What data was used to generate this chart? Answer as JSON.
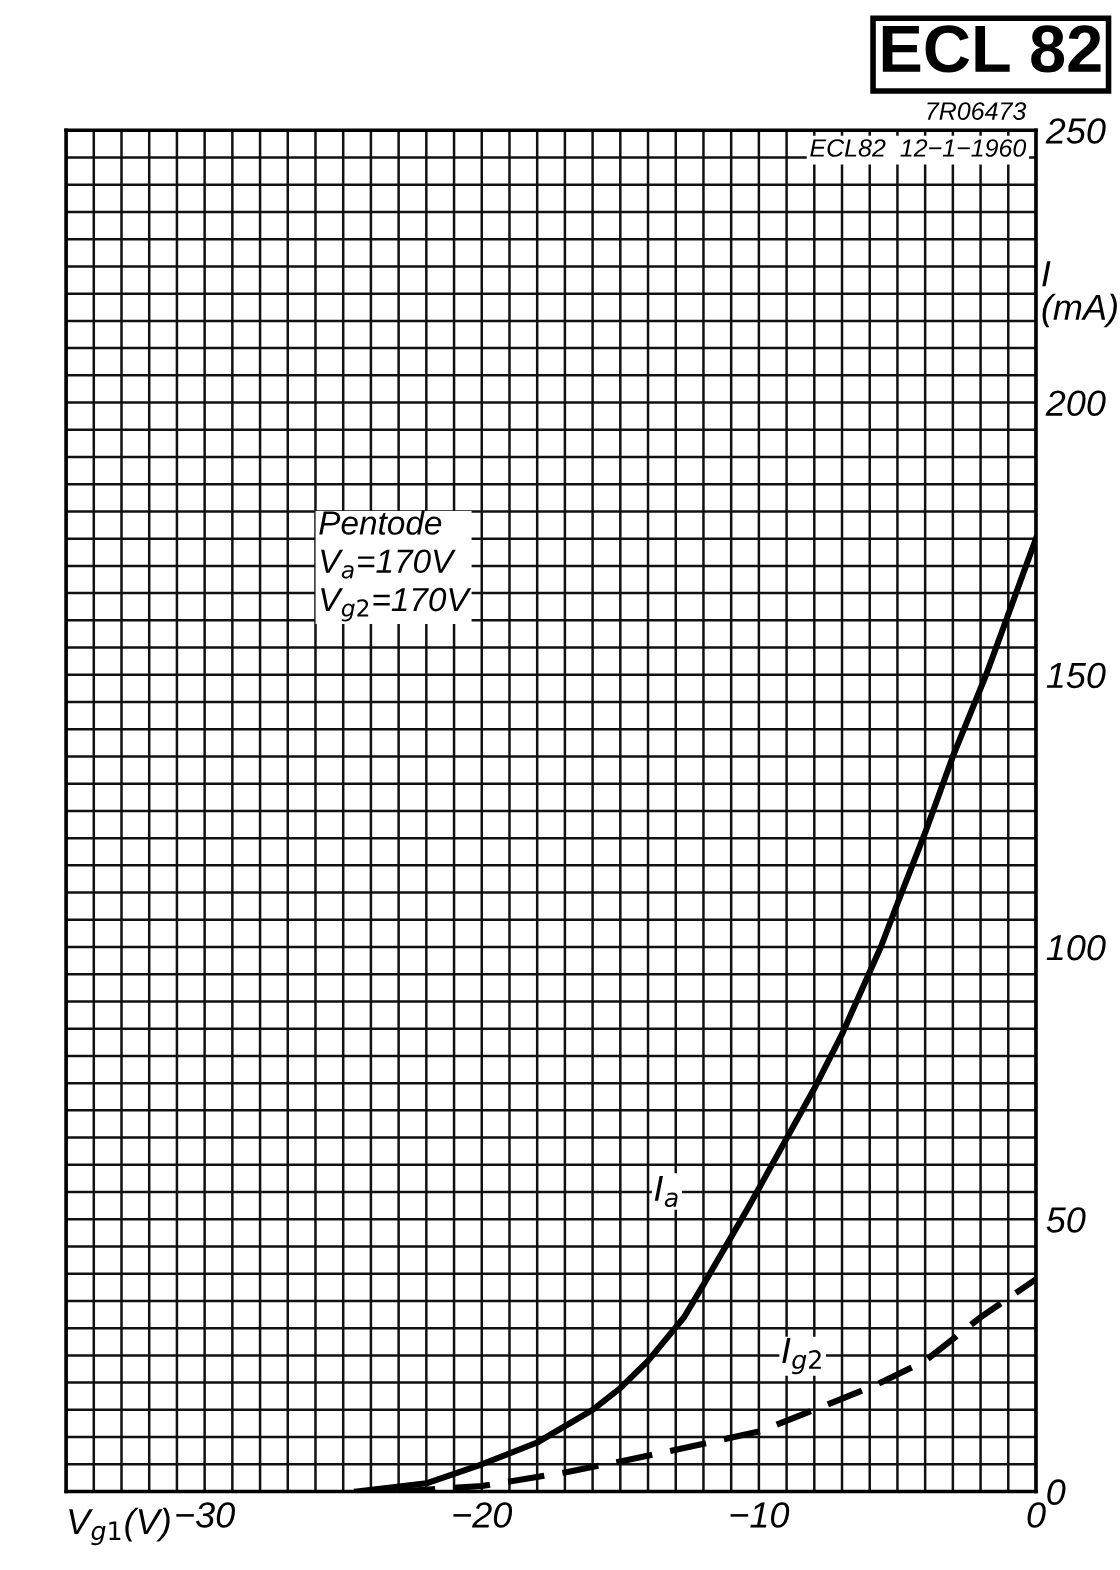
{
  "chart_data": {
    "type": "line",
    "title": "ECL 82",
    "xlabel": "V$_{g1}$(V)",
    "ylabel": "I\n(mA)",
    "annotations": [
      "7R06473",
      "ECL82  12−1−1960",
      "Pentode\nV$_{a}$=170V\nV$_{g2}$=170V"
    ],
    "series": [
      {
        "name": "I$_{a}$",
        "color": "#000000",
        "line_style": "solid",
        "x": [
          -24.5,
          -22,
          -20,
          -18,
          -16,
          -15,
          -14,
          -12.7,
          -12,
          -10.4,
          -8,
          -7,
          -5.6,
          -5,
          -4,
          -3,
          -1.8,
          0
        ],
        "values": [
          0,
          1.5,
          5,
          9,
          15,
          19,
          24,
          32,
          38,
          52,
          74,
          84,
          100,
          108,
          121,
          135,
          150,
          175
        ]
      },
      {
        "name": "I$_{g2}$",
        "color": "#000000",
        "line_style": "dashed",
        "x": [
          -23,
          -20,
          -17,
          -15,
          -12.7,
          -10,
          -8,
          -5.8,
          -4,
          -2,
          0
        ],
        "values": [
          0,
          1,
          3.5,
          5.5,
          8,
          11,
          15,
          19.5,
          24,
          32,
          39
        ]
      }
    ],
    "xlim": [
      -35,
      0
    ],
    "ylim": [
      0,
      250
    ],
    "xticks": [
      {
        "value": -35,
        "label": null
      },
      {
        "value": -34,
        "label": null
      },
      {
        "value": -33,
        "label": null
      },
      {
        "value": -32,
        "label": null
      },
      {
        "value": -31,
        "label": null
      },
      {
        "value": -30,
        "label": "−30"
      },
      {
        "value": -29,
        "label": null
      },
      {
        "value": -28,
        "label": null
      },
      {
        "value": -27,
        "label": null
      },
      {
        "value": -26,
        "label": null
      },
      {
        "value": -25,
        "label": null
      },
      {
        "value": -24,
        "label": null
      },
      {
        "value": -23,
        "label": null
      },
      {
        "value": -22,
        "label": null
      },
      {
        "value": -21,
        "label": null
      },
      {
        "value": -20,
        "label": "−20"
      },
      {
        "value": -19,
        "label": null
      },
      {
        "value": -18,
        "label": null
      },
      {
        "value": -17,
        "label": null
      },
      {
        "value": -16,
        "label": null
      },
      {
        "value": -15,
        "label": null
      },
      {
        "value": -14,
        "label": null
      },
      {
        "value": -13,
        "label": null
      },
      {
        "value": -12,
        "label": null
      },
      {
        "value": -11,
        "label": null
      },
      {
        "value": -10,
        "label": "−10"
      },
      {
        "value": -9,
        "label": null
      },
      {
        "value": -8,
        "label": null
      },
      {
        "value": -7,
        "label": null
      },
      {
        "value": -6,
        "label": null
      },
      {
        "value": -5,
        "label": null
      },
      {
        "value": -4,
        "label": null
      },
      {
        "value": -3,
        "label": null
      },
      {
        "value": -2,
        "label": null
      },
      {
        "value": -1,
        "label": null
      },
      0
    ],
    "yticks": [
      0,
      {
        "value": 5,
        "label": null
      },
      {
        "value": 10,
        "label": null
      },
      {
        "value": 15,
        "label": null
      },
      {
        "value": 20,
        "label": null
      },
      {
        "value": 25,
        "label": null
      },
      {
        "value": 30,
        "label": null
      },
      {
        "value": 35,
        "label": null
      },
      {
        "value": 40,
        "label": null
      },
      {
        "value": 45,
        "label": null
      },
      50,
      {
        "value": 55,
        "label": null
      },
      {
        "value": 60,
        "label": null
      },
      {
        "value": 65,
        "label": null
      },
      {
        "value": 70,
        "label": null
      },
      {
        "value": 75,
        "label": null
      },
      {
        "value": 80,
        "label": null
      },
      {
        "value": 85,
        "label": null
      },
      {
        "value": 90,
        "label": null
      },
      {
        "value": 95,
        "label": null
      },
      100,
      {
        "value": 105,
        "label": null
      },
      {
        "value": 110,
        "label": null
      },
      {
        "value": 115,
        "label": null
      },
      {
        "value": 120,
        "label": null
      },
      {
        "value": 125,
        "label": null
      },
      {
        "value": 130,
        "label": null
      },
      {
        "value": 135,
        "label": null
      },
      {
        "value": 140,
        "label": null
      },
      {
        "value": 145,
        "label": null
      },
      150,
      {
        "value": 155,
        "label": null
      },
      {
        "value": 160,
        "label": null
      },
      {
        "value": 165,
        "label": null
      },
      {
        "value": 170,
        "label": null
      },
      {
        "value": 175,
        "label": null
      },
      {
        "value": 180,
        "label": null
      },
      {
        "value": 185,
        "label": null
      },
      {
        "value": 190,
        "label": null
      },
      {
        "value": 195,
        "label": null
      },
      200,
      {
        "value": 205,
        "label": null
      },
      {
        "value": 210,
        "label": null
      },
      {
        "value": 215,
        "label": null
      },
      {
        "value": 220,
        "label": null
      },
      {
        "value": 225,
        "label": null
      },
      {
        "value": 230,
        "label": null
      },
      {
        "value": 235,
        "label": null
      },
      {
        "value": 240,
        "label": null
      },
      {
        "value": 245,
        "label": null
      },
      250
    ],
    "grid": true
  }
}
